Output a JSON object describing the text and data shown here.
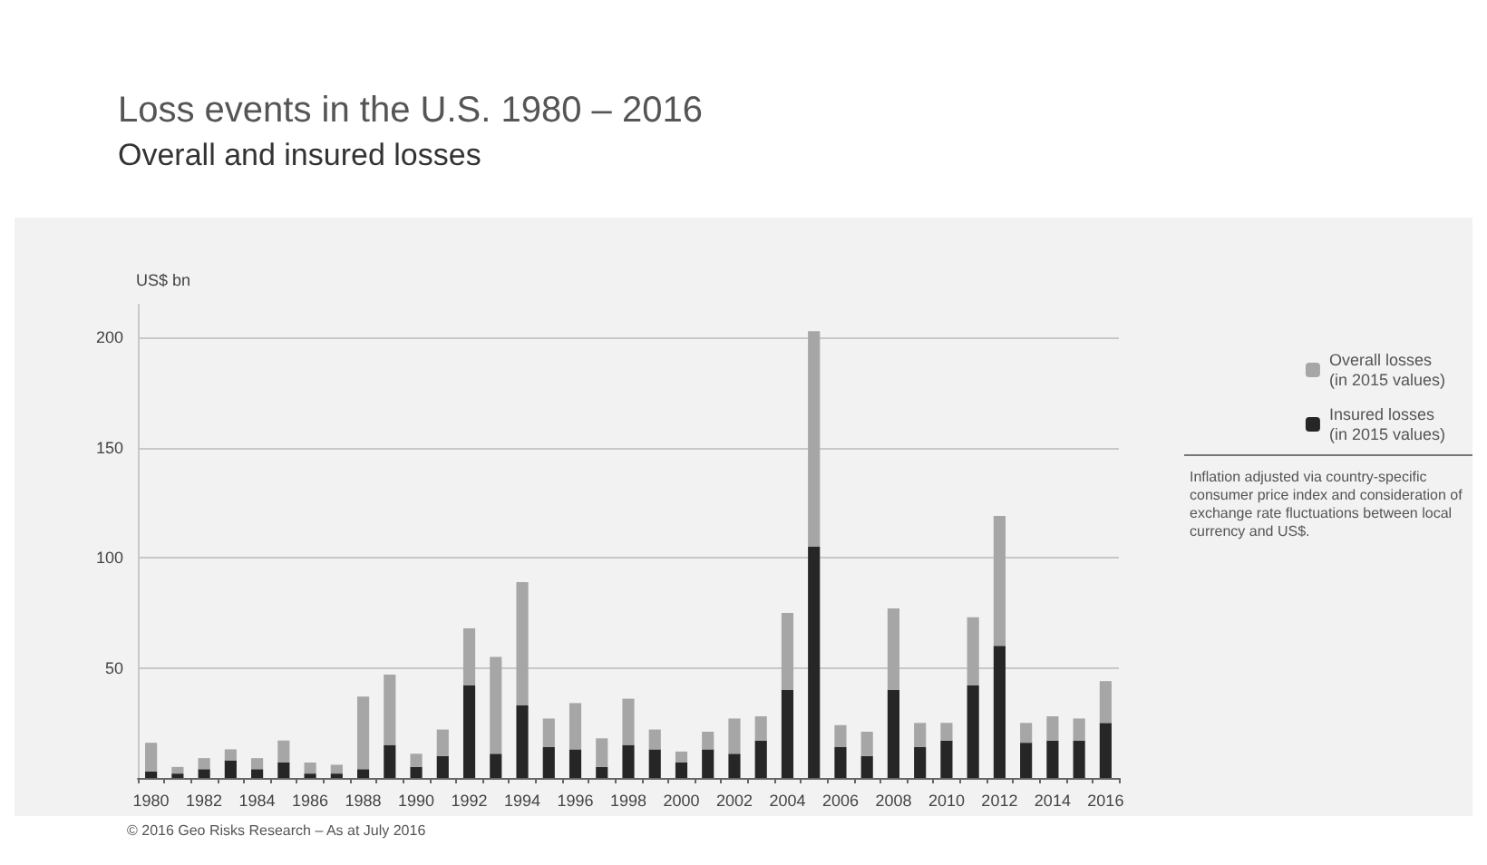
{
  "chart_data": {
    "type": "bar",
    "title": "Loss events in the U.S. 1980 – 2016",
    "subtitle": "Overall and insured losses",
    "ylabel": "US$ bn",
    "categories": [
      "1980",
      null,
      "1982",
      null,
      "1984",
      null,
      "1986",
      null,
      "1988",
      null,
      "1990",
      null,
      "1992",
      null,
      "1994",
      null,
      "1996",
      null,
      "1998",
      null,
      "2000",
      null,
      "2002",
      null,
      "2004",
      null,
      "2006",
      null,
      "2008",
      null,
      "2010",
      null,
      "2012",
      null,
      "2014",
      null,
      "2016"
    ],
    "stacked": true,
    "series": [
      {
        "name": "Insured losses\n(in 2015 values)",
        "color": "#262626",
        "values": [
          3,
          2,
          4,
          8,
          4,
          7,
          2,
          2,
          4,
          15,
          5,
          10,
          42,
          11,
          33,
          14,
          13,
          5,
          15,
          13,
          7,
          13,
          11,
          17,
          40,
          105,
          14,
          10,
          40,
          14,
          17,
          42,
          60,
          16,
          17,
          17,
          25
        ]
      },
      {
        "name": "Overall losses\n(in 2015 values)",
        "color": "#a6a6a6",
        "values": [
          13,
          3,
          5,
          5,
          5,
          10,
          5,
          4,
          33,
          32,
          6,
          12,
          26,
          44,
          56,
          13,
          21,
          13,
          21,
          9,
          5,
          8,
          16,
          11,
          35,
          98,
          10,
          11,
          37,
          11,
          8,
          31,
          59,
          9,
          11,
          10,
          19
        ]
      }
    ],
    "ylim": [
      0,
      215
    ],
    "yticks": [
      {
        "value": 0,
        "label": null
      },
      50,
      100,
      150,
      200
    ],
    "grid": "y",
    "legend": "top right",
    "annotations": [
      "Inflation adjusted via country-specific consumer price index and consideration of exchange rate fluctuations between local currency and US$.",
      "© 2016 Geo Risks Research – As at July 2016"
    ]
  }
}
